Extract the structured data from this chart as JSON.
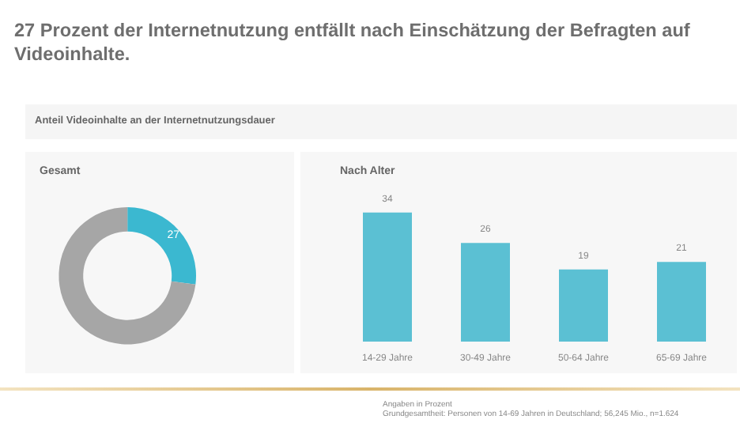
{
  "chart_data": [
    {
      "type": "donut",
      "title": "Gesamt",
      "categories": [
        null,
        null
      ],
      "values": [
        27,
        73
      ],
      "colors": [
        "#3bb8d0",
        "#a6a6a6"
      ],
      "value_labels": [
        "27",
        null
      ],
      "annotations": [
        "27 Prozent der Internetnutzung entfällt nach Einschätzung der Befragten auf Videoinhalte.",
        "Anteil Videoinhalte an der Internetnutzungsdauer",
        "Angaben in Prozent",
        "Grundgesamtheit: Personen von 14-69 Jahren in Deutschland; 56,245 Mio., n=1.624"
      ]
    },
    {
      "type": "bar",
      "title": "Nach Alter",
      "categories": [
        "14-29 Jahre",
        "30-49 Jahre",
        "50-64 Jahre",
        "65-69 Jahre"
      ],
      "values": [
        34,
        26,
        19,
        21
      ],
      "color": "#5bc0d3",
      "data_labels": true
    }
  ]
}
